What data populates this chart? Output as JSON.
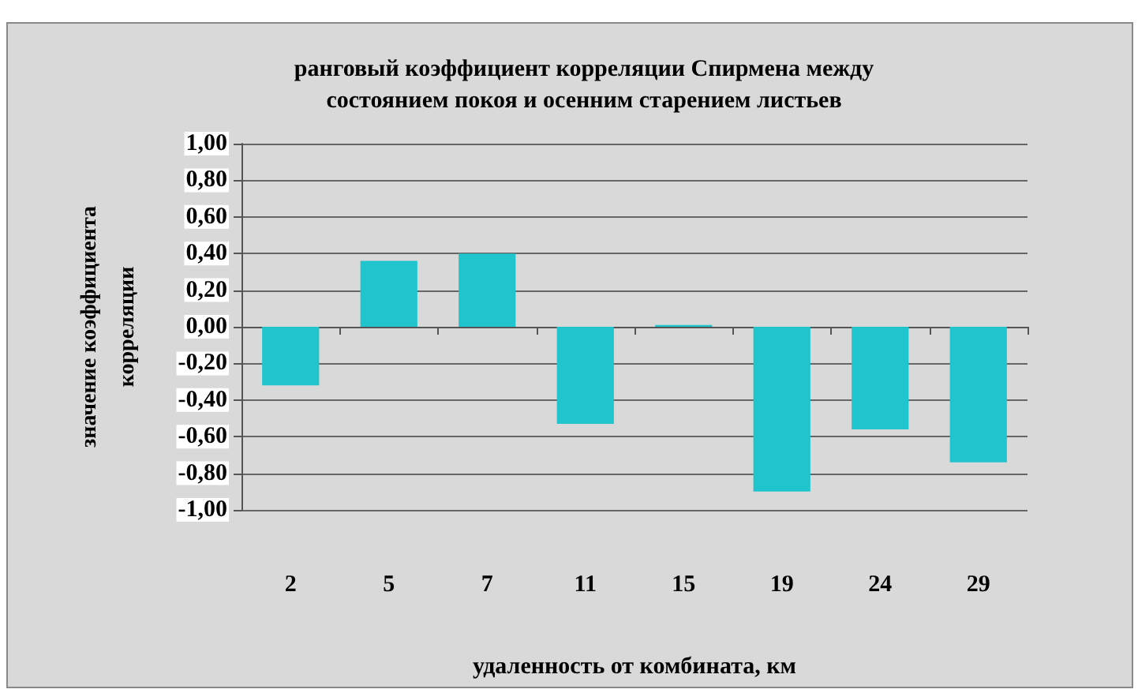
{
  "chart_data": {
    "type": "bar",
    "title": "ранговый коэффициент корреляции Спирмена между\nсостоянием покоя и осенним старением листьев",
    "xlabel": "удаленность от комбината, км",
    "ylabel": "значение коэффициента\nкорреляции",
    "categories": [
      "2",
      "5",
      "7",
      "11",
      "15",
      "19",
      "24",
      "29"
    ],
    "values": [
      -0.32,
      0.36,
      0.4,
      -0.53,
      0.01,
      -0.9,
      -0.56,
      -0.74
    ],
    "color": "#20c4cc",
    "ylim": [
      -1,
      1
    ],
    "yticks": [
      {
        "value": -1,
        "label": "-1,00"
      },
      {
        "value": -0.8,
        "label": "-0,80"
      },
      {
        "value": -0.6,
        "label": "-0,60"
      },
      {
        "value": -0.4,
        "label": "-0,40"
      },
      {
        "value": -0.2,
        "label": "-0,20"
      },
      {
        "value": 0,
        "label": "0,00"
      },
      {
        "value": 0.2,
        "label": "0,20"
      },
      {
        "value": 0.4,
        "label": "0,40"
      },
      {
        "value": 0.6,
        "label": "0,60"
      },
      {
        "value": 0.8,
        "label": "0,80"
      },
      {
        "value": 1,
        "label": "1,00"
      }
    ],
    "grid": "y"
  }
}
